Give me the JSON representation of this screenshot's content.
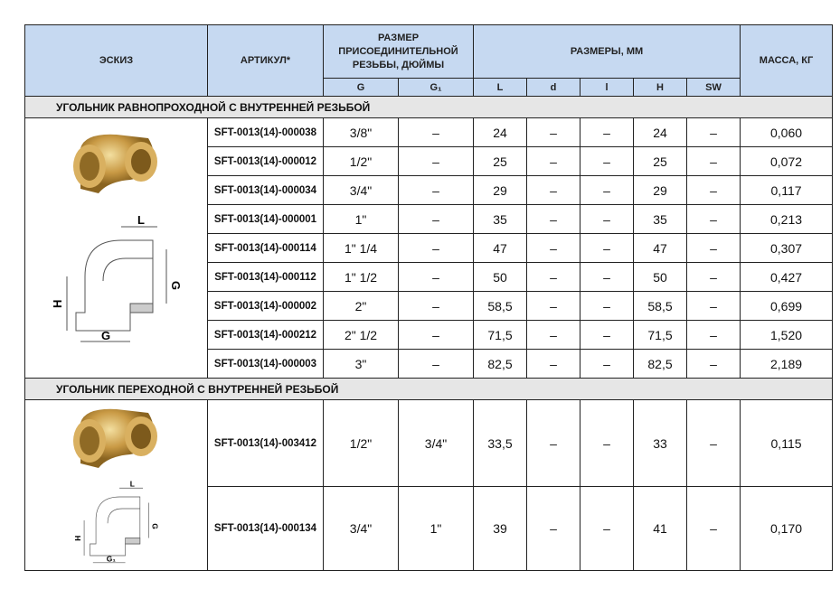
{
  "header": {
    "sketch": "ЭСКИЗ",
    "article": "АРТИКУЛ*",
    "thread": "РАЗМЕР ПРИСОЕДИНИТЕЛЬНОЙ РЕЗЬБЫ, ДЮЙМЫ",
    "dims": "РАЗМЕРЫ, ММ",
    "mass": "МАССА, КГ",
    "sub": [
      "G",
      "G₁",
      "L",
      "d",
      "l",
      "H",
      "SW"
    ]
  },
  "sections": [
    {
      "title": "УГОЛЬНИК РАВНОПРОХОДНОЙ С ВНУТРЕННЕЙ РЕЗЬБОЙ",
      "diagram_labels": [
        "L",
        "G",
        "H",
        "G"
      ],
      "rows": [
        [
          "SFT-0013(14)-000038",
          "3/8\"",
          "–",
          "24",
          "–",
          "–",
          "24",
          "–",
          "0,060"
        ],
        [
          "SFT-0013(14)-000012",
          "1/2\"",
          "–",
          "25",
          "–",
          "–",
          "25",
          "–",
          "0,072"
        ],
        [
          "SFT-0013(14)-000034",
          "3/4\"",
          "–",
          "29",
          "–",
          "–",
          "29",
          "–",
          "0,117"
        ],
        [
          "SFT-0013(14)-000001",
          "1\"",
          "–",
          "35",
          "–",
          "–",
          "35",
          "–",
          "0,213"
        ],
        [
          "SFT-0013(14)-000114",
          "1\" 1/4",
          "–",
          "47",
          "–",
          "–",
          "47",
          "–",
          "0,307"
        ],
        [
          "SFT-0013(14)-000112",
          "1\" 1/2",
          "–",
          "50",
          "–",
          "–",
          "50",
          "–",
          "0,427"
        ],
        [
          "SFT-0013(14)-000002",
          "2\"",
          "–",
          "58,5",
          "–",
          "–",
          "58,5",
          "–",
          "0,699"
        ],
        [
          "SFT-0013(14)-000212",
          "2\" 1/2",
          "–",
          "71,5",
          "–",
          "–",
          "71,5",
          "–",
          "1,520"
        ],
        [
          "SFT-0013(14)-000003",
          "3\"",
          "–",
          "82,5",
          "–",
          "–",
          "82,5",
          "–",
          "2,189"
        ]
      ]
    },
    {
      "title": "УГОЛЬНИК ПЕРЕХОДНОЙ С ВНУТРЕННЕЙ РЕЗЬБОЙ",
      "diagram_labels": [
        "L",
        "G",
        "H",
        "G₁"
      ],
      "rows": [
        [
          "SFT-0013(14)-003412",
          "1/2\"",
          "3/4\"",
          "33,5",
          "–",
          "–",
          "33",
          "–",
          "0,115"
        ],
        [
          "SFT-0013(14)-000134",
          "3/4\"",
          "1\"",
          "39",
          "–",
          "–",
          "41",
          "–",
          "0,170"
        ]
      ]
    }
  ]
}
